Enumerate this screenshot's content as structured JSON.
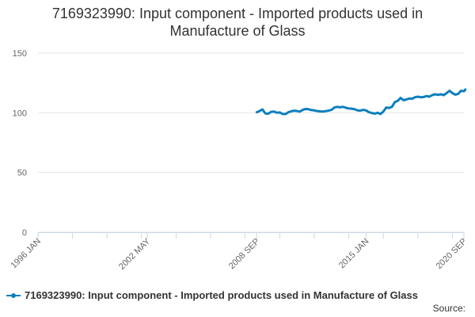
{
  "chart_data": {
    "type": "line",
    "title_lines": [
      "7169323990: Input component - Imported products used in",
      "Manufacture of Glass"
    ],
    "ylim": [
      0,
      150
    ],
    "yticks": [
      "0",
      "50",
      "100",
      "150"
    ],
    "xlim": [
      "1996-01",
      "2020-09"
    ],
    "xticks": [
      {
        "date": "1996-01",
        "label": "1996 JAN"
      },
      {
        "date": "2002-05",
        "label": "2002 MAY"
      },
      {
        "date": "2008-09",
        "label": "2008 SEP"
      },
      {
        "date": "2015-01",
        "label": "2015 JAN"
      },
      {
        "date": "2020-09",
        "label": "2020 SEP"
      }
    ],
    "series": [
      {
        "name": "7169323990: Input component - Imported products used in Manufacture of Glass",
        "color": "#0d7fbd",
        "points": [
          [
            "2008-09",
            100.5
          ],
          [
            "2008-11",
            101.5
          ],
          [
            "2009-01",
            102.8
          ],
          [
            "2009-03",
            99.5
          ],
          [
            "2009-05",
            99.2
          ],
          [
            "2009-07",
            100.8
          ],
          [
            "2009-09",
            101.0
          ],
          [
            "2009-11",
            100.0
          ],
          [
            "2010-01",
            100.3
          ],
          [
            "2010-03",
            99.0
          ],
          [
            "2010-05",
            98.9
          ],
          [
            "2010-07",
            100.5
          ],
          [
            "2010-09",
            101.2
          ],
          [
            "2010-11",
            101.8
          ],
          [
            "2011-01",
            101.5
          ],
          [
            "2011-03",
            101.0
          ],
          [
            "2011-05",
            102.5
          ],
          [
            "2011-07",
            103.2
          ],
          [
            "2011-09",
            103.0
          ],
          [
            "2011-11",
            102.3
          ],
          [
            "2012-01",
            102.0
          ],
          [
            "2012-03",
            101.5
          ],
          [
            "2012-05",
            101.2
          ],
          [
            "2012-07",
            101.0
          ],
          [
            "2012-09",
            101.4
          ],
          [
            "2012-11",
            101.8
          ],
          [
            "2013-01",
            102.5
          ],
          [
            "2013-03",
            104.5
          ],
          [
            "2013-05",
            105.0
          ],
          [
            "2013-07",
            104.6
          ],
          [
            "2013-09",
            105.0
          ],
          [
            "2013-11",
            104.2
          ],
          [
            "2014-01",
            103.6
          ],
          [
            "2014-03",
            103.5
          ],
          [
            "2014-05",
            103.0
          ],
          [
            "2014-07",
            102.0
          ],
          [
            "2014-09",
            101.8
          ],
          [
            "2014-11",
            102.5
          ],
          [
            "2015-01",
            102.0
          ],
          [
            "2015-03",
            100.5
          ],
          [
            "2015-05",
            99.8
          ],
          [
            "2015-07",
            99.3
          ],
          [
            "2015-09",
            100.0
          ],
          [
            "2015-11",
            99.0
          ],
          [
            "2016-01",
            101.0
          ],
          [
            "2016-03",
            104.5
          ],
          [
            "2016-05",
            104.0
          ],
          [
            "2016-07",
            105.0
          ],
          [
            "2016-09",
            109.0
          ],
          [
            "2016-11",
            110.0
          ],
          [
            "2017-01",
            112.5
          ],
          [
            "2017-03",
            110.5
          ],
          [
            "2017-05",
            111.2
          ],
          [
            "2017-07",
            112.0
          ],
          [
            "2017-09",
            111.8
          ],
          [
            "2017-11",
            113.0
          ],
          [
            "2018-01",
            113.5
          ],
          [
            "2018-03",
            113.0
          ],
          [
            "2018-05",
            113.2
          ],
          [
            "2018-07",
            114.0
          ],
          [
            "2018-09",
            113.5
          ],
          [
            "2018-11",
            114.8
          ],
          [
            "2019-01",
            115.5
          ],
          [
            "2019-03",
            115.0
          ],
          [
            "2019-05",
            115.5
          ],
          [
            "2019-07",
            114.8
          ],
          [
            "2019-09",
            116.5
          ],
          [
            "2019-11",
            118.5
          ],
          [
            "2020-01",
            116.5
          ],
          [
            "2020-03",
            115.2
          ],
          [
            "2020-05",
            115.8
          ],
          [
            "2020-07",
            118.5
          ],
          [
            "2020-09",
            118.0
          ],
          [
            "2020-10",
            119.5
          ]
        ]
      }
    ]
  },
  "legend": {
    "label": "7169323990: Input component - Imported products used in Manufacture of Glass"
  },
  "source_label": "Source:"
}
